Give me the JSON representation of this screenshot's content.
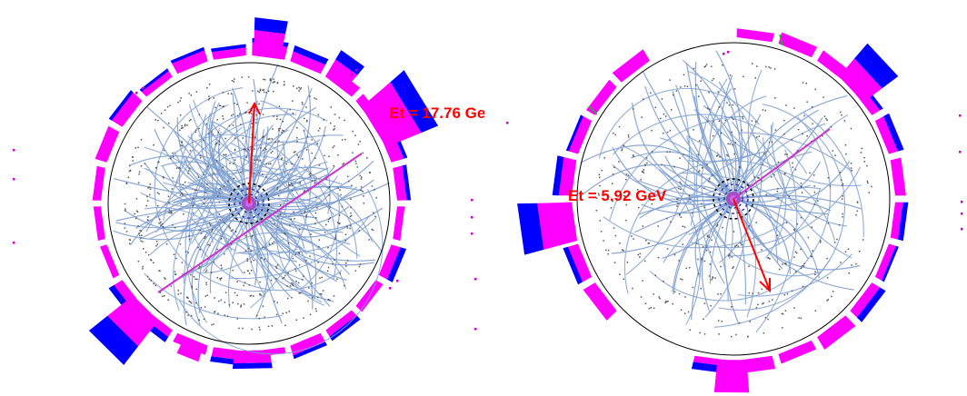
{
  "panels": [
    {
      "name": "left-event-display",
      "et_label": "Et =  17.76 GeV",
      "colors": {
        "tracks": "#7f9fcf",
        "hits": "#666666",
        "calo_em": "#ff00ff",
        "calo_had": "#0000ff",
        "met_arrow": "#ff0000",
        "jet_axis": "#cc33cc",
        "ring": "#000000"
      }
    },
    {
      "name": "right-event-display",
      "et_label": "Et =  5.92 GeV",
      "colors": {
        "tracks": "#7f9fcf",
        "hits": "#666666",
        "calo_em": "#ff00ff",
        "calo_had": "#0000ff",
        "met_arrow": "#ff0000",
        "jet_axis": "#cc33cc",
        "ring": "#000000",
        "muon_stub": "#00cc00"
      }
    }
  ]
}
